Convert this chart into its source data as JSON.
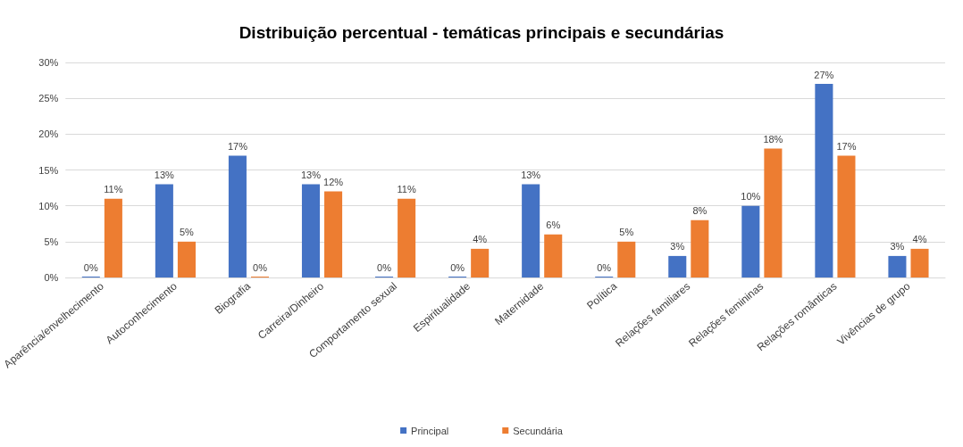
{
  "chart_data": {
    "type": "bar",
    "title": "Distribuição percentual - temáticas principais e secundárias",
    "categories": [
      "Aparência/envelhecimento",
      "Autoconhecimento",
      "Biografia",
      "Carreira/Dinheiro",
      "Comportamento sexual",
      "Espiritualidade",
      "Maternidade",
      "Política",
      "Relações familiares",
      "Relações femininas",
      "Relações românticas",
      "Vivências de grupo"
    ],
    "series": [
      {
        "name": "Principal",
        "color": "#4472c4",
        "values": [
          0,
          13,
          17,
          13,
          0,
          0,
          13,
          0,
          3,
          10,
          27,
          3
        ],
        "value_labels": [
          "0%",
          "13%",
          "17%",
          "13%",
          "0%",
          "0%",
          "13%",
          "0%",
          "3%",
          "10%",
          "27%",
          "3%"
        ]
      },
      {
        "name": "Secundária",
        "color": "#ed7d31",
        "values": [
          11,
          5,
          0,
          12,
          11,
          4,
          6,
          5,
          8,
          18,
          17,
          4
        ],
        "value_labels": [
          "11%",
          "5%",
          "0%",
          "12%",
          "11%",
          "4%",
          "6%",
          "5%",
          "8%",
          "18%",
          "17%",
          "4%"
        ]
      }
    ],
    "ylim": [
      0,
      30
    ],
    "yticks": [
      {
        "value": 0,
        "label": "0%"
      },
      {
        "value": 5,
        "label": "5%"
      },
      {
        "value": 10,
        "label": "10%"
      },
      {
        "value": 15,
        "label": "15%"
      },
      {
        "value": 20,
        "label": "20%"
      },
      {
        "value": 25,
        "label": "25%"
      },
      {
        "value": 30,
        "label": "30%"
      }
    ],
    "grid": "y",
    "legend": "bottom"
  }
}
